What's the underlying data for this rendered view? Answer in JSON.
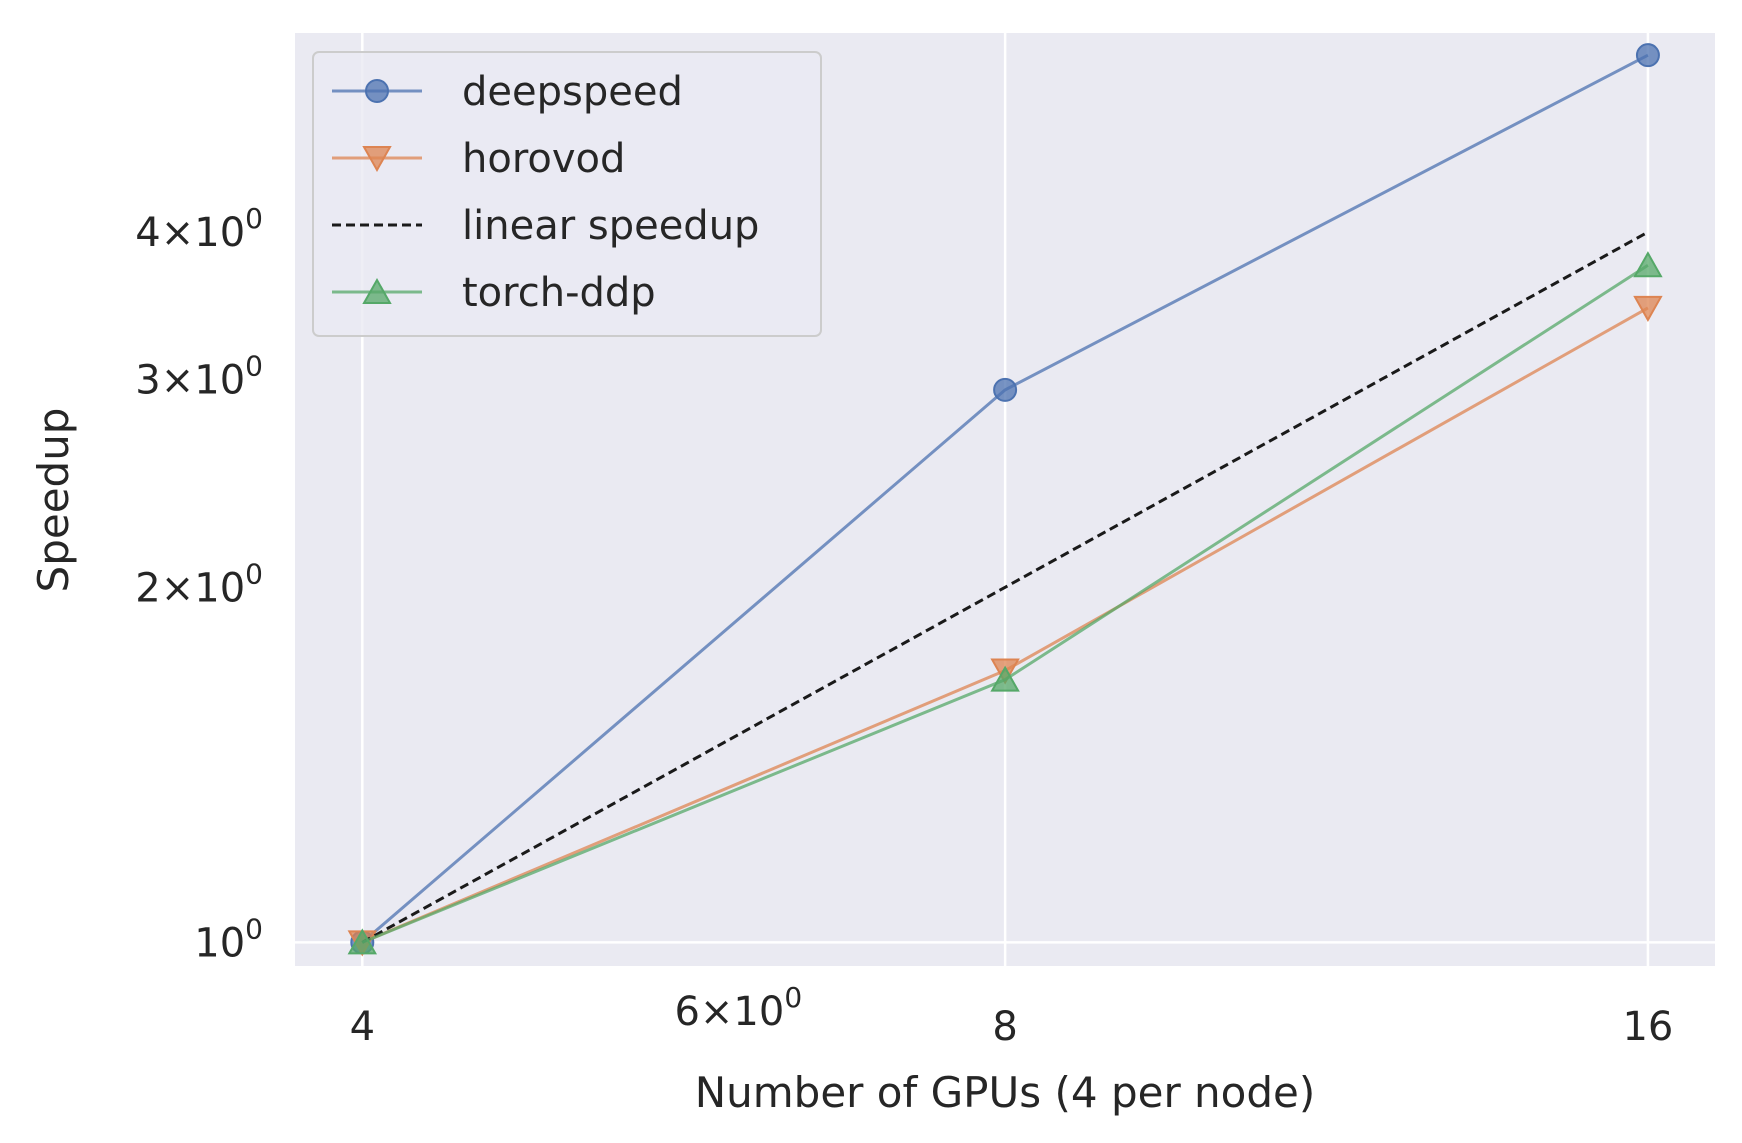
{
  "chart_data": {
    "type": "line",
    "title": "",
    "xlabel": "Number of GPUs (4 per node)",
    "ylabel": "Speedup",
    "xscale": "log",
    "yscale": "log",
    "xlim": [
      3.72,
      17.2
    ],
    "ylim": [
      0.955,
      5.9
    ],
    "grid": true,
    "legend_position": "top-left",
    "x": [
      4,
      8,
      16
    ],
    "x_ticks": [
      {
        "value": 4,
        "label": "4",
        "major": true
      },
      {
        "value": 6,
        "label": "6×10",
        "exp": "0",
        "major": false
      },
      {
        "value": 8,
        "label": "8",
        "major": true
      },
      {
        "value": 16,
        "label": "16",
        "major": true
      }
    ],
    "y_ticks": [
      {
        "value": 1,
        "label": "10",
        "exp": "0",
        "major": true
      },
      {
        "value": 2,
        "label": "2×10",
        "exp": "0",
        "major": false
      },
      {
        "value": 3,
        "label": "3×10",
        "exp": "0",
        "major": false
      },
      {
        "value": 4,
        "label": "4×10",
        "exp": "0",
        "major": false
      }
    ],
    "series": [
      {
        "name": "deepspeed",
        "values": [
          1.0,
          2.94,
          5.65
        ],
        "color": "#4c72b0",
        "marker": "circle",
        "dash": ""
      },
      {
        "name": "horovod",
        "values": [
          1.0,
          1.7,
          3.45
        ],
        "color": "#dd8452",
        "marker": "triangle-down",
        "dash": ""
      },
      {
        "name": "linear speedup",
        "values": [
          1.0,
          2.0,
          4.0
        ],
        "color": "#1a1a1a",
        "marker": "none",
        "dash": "9,5"
      },
      {
        "name": "torch-ddp",
        "values": [
          1.0,
          1.67,
          3.75
        ],
        "color": "#55a868",
        "marker": "triangle-up",
        "dash": ""
      }
    ]
  }
}
